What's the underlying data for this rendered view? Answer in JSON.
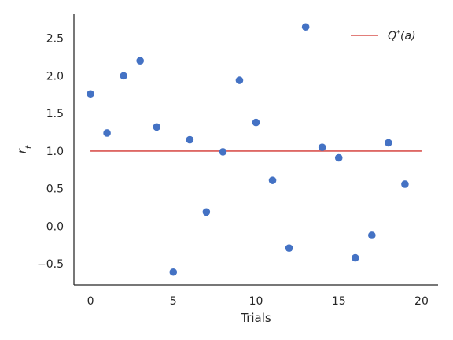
{
  "chart_data": {
    "type": "scatter",
    "xlabel": "Trials",
    "ylabel": "r_t",
    "xlim": [
      -1,
      21
    ],
    "ylim": [
      -0.78,
      2.82
    ],
    "xticks": [
      0,
      5,
      10,
      15,
      20
    ],
    "yticks": [
      -0.5,
      0.0,
      0.5,
      1.0,
      1.5,
      2.0,
      2.5
    ],
    "xtick_labels": [
      "0",
      "5",
      "10",
      "15",
      "20"
    ],
    "ytick_labels": [
      "−0.5",
      "0.0",
      "0.5",
      "1.0",
      "1.5",
      "2.0",
      "2.5"
    ],
    "grid": false,
    "legend": {
      "position": "top-right",
      "entries": [
        "Q*(a)"
      ]
    },
    "series": [
      {
        "kind": "scatter",
        "color": "#4472c4",
        "x": [
          0,
          1,
          2,
          3,
          4,
          5,
          6,
          7,
          8,
          9,
          10,
          11,
          12,
          13,
          14,
          15,
          16,
          17,
          18,
          19
        ],
        "y": [
          1.76,
          1.24,
          2.0,
          2.2,
          1.32,
          -0.61,
          1.15,
          0.19,
          0.99,
          1.94,
          1.38,
          0.61,
          -0.29,
          2.65,
          1.05,
          0.91,
          -0.42,
          -0.12,
          1.11,
          0.56
        ]
      },
      {
        "kind": "line",
        "name": "Q*(a)",
        "color": "#d9534f",
        "x": [
          0,
          20
        ],
        "y": [
          1.0,
          1.0
        ]
      }
    ]
  }
}
